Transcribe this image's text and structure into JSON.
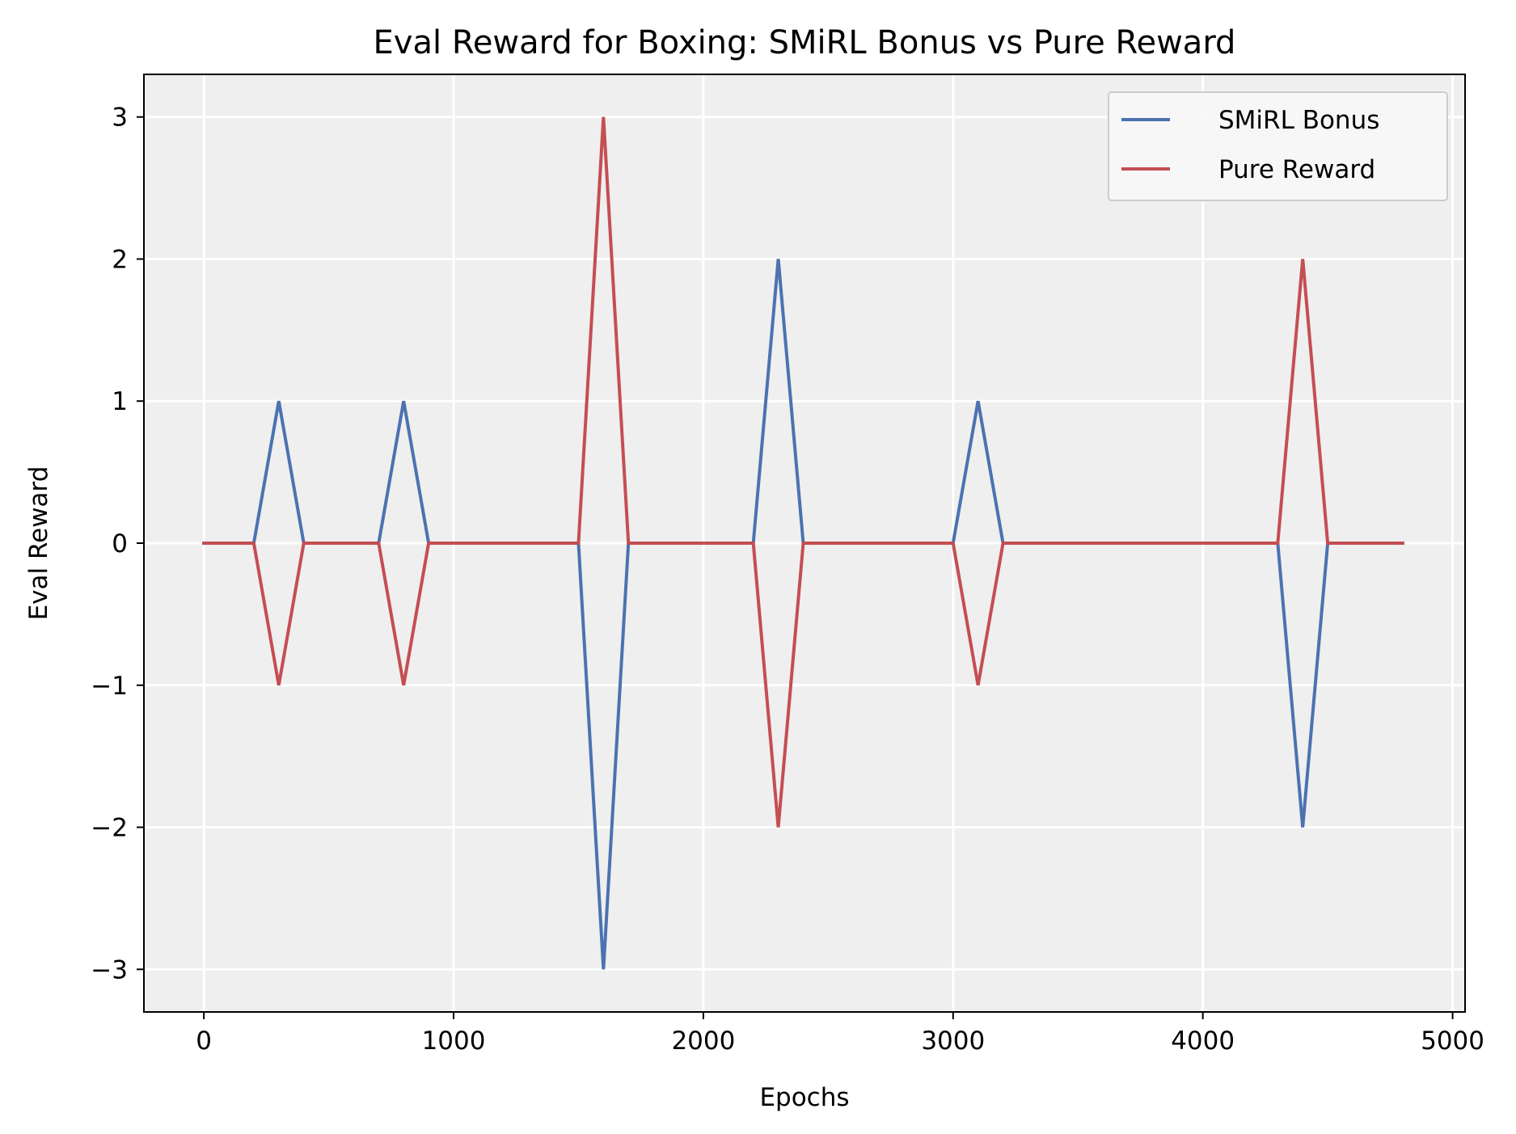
{
  "chart_data": {
    "type": "line",
    "title": "Eval Reward for Boxing: SMiRL Bonus vs Pure Reward",
    "xlabel": "Epochs",
    "ylabel": "Eval Reward",
    "xlim": [
      -240,
      5050
    ],
    "ylim": [
      -3.3,
      3.3
    ],
    "xticks": [
      0,
      1000,
      2000,
      3000,
      4000,
      5000
    ],
    "xtick_labels": [
      "0",
      "1000",
      "2000",
      "3000",
      "4000",
      "5000"
    ],
    "yticks": [
      -3,
      -2,
      -1,
      0,
      1,
      2,
      3
    ],
    "ytick_labels": [
      "−3",
      "−2",
      "−1",
      "0",
      "1",
      "2",
      "3"
    ],
    "grid": true,
    "legend_position": "upper right",
    "background": "#efefef",
    "x": [
      0,
      100,
      200,
      300,
      400,
      500,
      600,
      700,
      800,
      900,
      1000,
      1100,
      1200,
      1300,
      1400,
      1500,
      1600,
      1700,
      1800,
      1900,
      2000,
      2100,
      2200,
      2300,
      2400,
      2500,
      2600,
      2700,
      2800,
      2900,
      3000,
      3100,
      3200,
      3300,
      3400,
      3500,
      3600,
      3700,
      3800,
      3900,
      4000,
      4100,
      4200,
      4300,
      4400,
      4500,
      4600,
      4700,
      4800
    ],
    "series": [
      {
        "name": "SMiRL Bonus",
        "color": "#4c72b0",
        "values": [
          0,
          0,
          0,
          1,
          0,
          0,
          0,
          0,
          1,
          0,
          0,
          0,
          0,
          0,
          0,
          0,
          -3,
          0,
          0,
          0,
          0,
          0,
          0,
          2,
          0,
          0,
          0,
          0,
          0,
          0,
          0,
          1,
          0,
          0,
          0,
          0,
          0,
          0,
          0,
          0,
          0,
          0,
          0,
          0,
          -2,
          0,
          0,
          0,
          0
        ]
      },
      {
        "name": "Pure Reward",
        "color": "#c44e52",
        "values": [
          0,
          0,
          0,
          -1,
          0,
          0,
          0,
          0,
          -1,
          0,
          0,
          0,
          0,
          0,
          0,
          0,
          3,
          0,
          0,
          0,
          0,
          0,
          0,
          -2,
          0,
          0,
          0,
          0,
          0,
          0,
          0,
          -1,
          0,
          0,
          0,
          0,
          0,
          0,
          0,
          0,
          0,
          0,
          0,
          0,
          2,
          0,
          0,
          0,
          0
        ]
      }
    ]
  }
}
